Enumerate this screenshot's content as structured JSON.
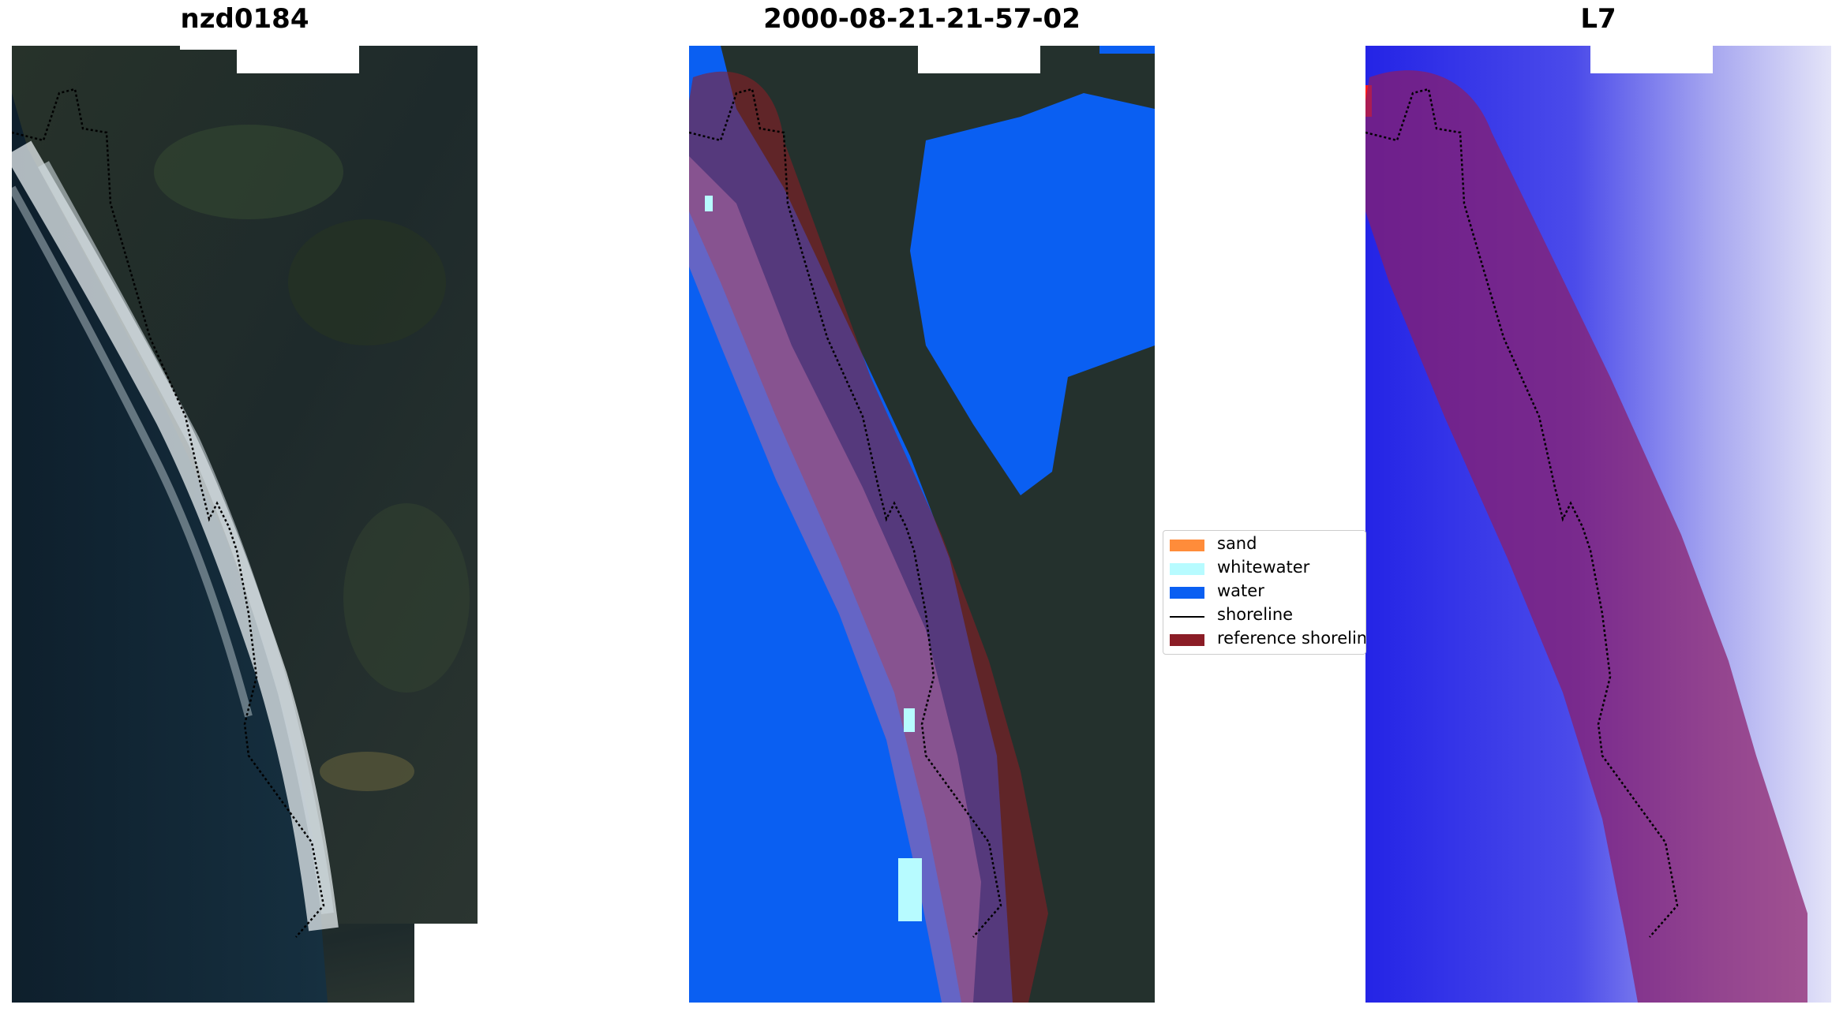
{
  "panels": [
    {
      "title": "nzd0184",
      "kind": "rgb"
    },
    {
      "title": "2000-08-21-21-57-02",
      "kind": "classified"
    },
    {
      "title": "L7",
      "kind": "index"
    }
  ],
  "legend": {
    "items": [
      {
        "label": "sand",
        "color": "#ff8c3a",
        "type": "patch"
      },
      {
        "label": "whitewater",
        "color": "#b7fbff",
        "type": "patch"
      },
      {
        "label": "water",
        "color": "#0a5ff2",
        "type": "patch"
      },
      {
        "label": "shoreline",
        "color": "#000000",
        "type": "line"
      },
      {
        "label": "reference shoreline",
        "color": "#8b1d26",
        "type": "patch"
      }
    ]
  },
  "colors": {
    "land_dark": "#1e2a2b",
    "sea_dark": "#102332",
    "water_class": "#0a5ff2",
    "buffer_overlay": "#8b1d26",
    "index_blue": "#3b3bea",
    "index_light": "#dcdcf6"
  }
}
